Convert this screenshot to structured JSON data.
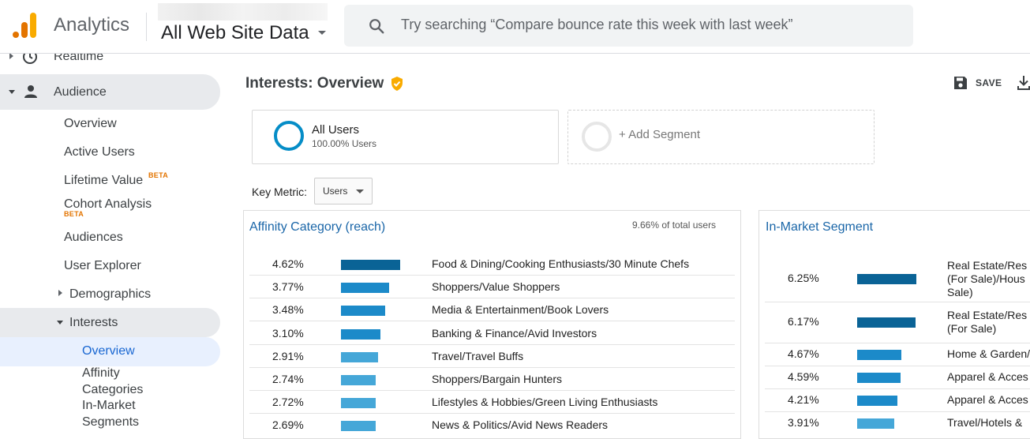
{
  "header": {
    "app_name": "Analytics",
    "property": "All Web Site Data",
    "search_placeholder": "Try searching “Compare bounce rate this week with last week”"
  },
  "sidebar": {
    "realtime": "Realtime",
    "audience": "Audience",
    "items": [
      "Overview",
      "Active Users",
      "Lifetime Value",
      "Cohort Analysis",
      "Audiences",
      "User Explorer",
      "Demographics",
      "Interests"
    ],
    "beta": "BETA",
    "interests_sub": [
      "Overview",
      "Affinity",
      "Categories",
      "In-Market",
      "Segments"
    ]
  },
  "report": {
    "title": "Interests: Overview",
    "save": "SAVE"
  },
  "segments": {
    "name": "All Users",
    "share": "100.00% Users",
    "add": "+ Add Segment"
  },
  "key_metric": {
    "label": "Key Metric:",
    "value": "Users"
  },
  "affinity": {
    "title": "Affinity Category (reach)",
    "note": "9.66% of total users",
    "rows": [
      {
        "pct": "4.62%",
        "value": 4.62,
        "label": "Food & Dining/Cooking Enthusiasts/30 Minute Chefs"
      },
      {
        "pct": "3.77%",
        "value": 3.77,
        "label": "Shoppers/Value Shoppers"
      },
      {
        "pct": "3.48%",
        "value": 3.48,
        "label": "Media & Entertainment/Book Lovers"
      },
      {
        "pct": "3.10%",
        "value": 3.1,
        "label": "Banking & Finance/Avid Investors"
      },
      {
        "pct": "2.91%",
        "value": 2.91,
        "label": "Travel/Travel Buffs"
      },
      {
        "pct": "2.74%",
        "value": 2.74,
        "label": "Shoppers/Bargain Hunters"
      },
      {
        "pct": "2.72%",
        "value": 2.72,
        "label": "Lifestyles & Hobbies/Green Living Enthusiasts"
      },
      {
        "pct": "2.69%",
        "value": 2.69,
        "label": "News & Politics/Avid News Readers"
      }
    ]
  },
  "in_market": {
    "title": "In-Market Segment",
    "rows": [
      {
        "pct": "6.25%",
        "value": 6.25,
        "label_lines": [
          "Real Estate/Res",
          "(For Sale)/Hous",
          "Sale)"
        ]
      },
      {
        "pct": "6.17%",
        "value": 6.17,
        "label_lines": [
          "Real Estate/Res",
          "(For Sale)"
        ]
      },
      {
        "pct": "4.67%",
        "value": 4.67,
        "label_lines": [
          "Home & Garden/"
        ]
      },
      {
        "pct": "4.59%",
        "value": 4.59,
        "label_lines": [
          "Apparel & Acces"
        ]
      },
      {
        "pct": "4.21%",
        "value": 4.21,
        "label_lines": [
          "Apparel & Acces"
        ]
      },
      {
        "pct": "3.91%",
        "value": 3.91,
        "label_lines": [
          "Travel/Hotels &"
        ]
      }
    ]
  },
  "colors": {
    "bar_dark": "#0a6396",
    "bar_mid": "#1c8ac9",
    "bar_light": "#45a7d8",
    "link": "#1a66a8",
    "brand_orange": "#e37400"
  }
}
